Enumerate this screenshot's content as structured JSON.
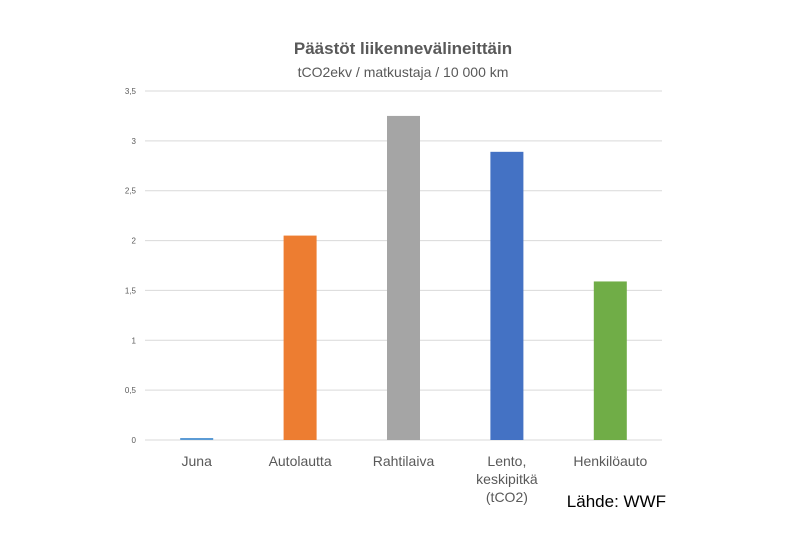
{
  "chart_data": {
    "type": "bar",
    "title": "Päästöt liikennevälineittäin",
    "subtitle": "tCO2ekv / matkustaja / 10 000 km",
    "categories": [
      [
        "Juna"
      ],
      [
        "Autolautta"
      ],
      [
        "Rahtilaiva"
      ],
      [
        "Lento,",
        "keskipitkä",
        "(tCO2)"
      ],
      [
        "Henkilöauto"
      ]
    ],
    "values": [
      0.02,
      2.05,
      3.25,
      2.89,
      1.59
    ],
    "colors": [
      "#5b9bd5",
      "#ed7d31",
      "#a5a5a5",
      "#4472c4",
      "#70ad47"
    ],
    "ylim": [
      0,
      3.5
    ],
    "yticks": [
      "0",
      "0,5",
      "1",
      "1,5",
      "2",
      "2,5",
      "3",
      "3,5"
    ],
    "grid": true,
    "legend": "none"
  },
  "source": "Lähde: WWF"
}
